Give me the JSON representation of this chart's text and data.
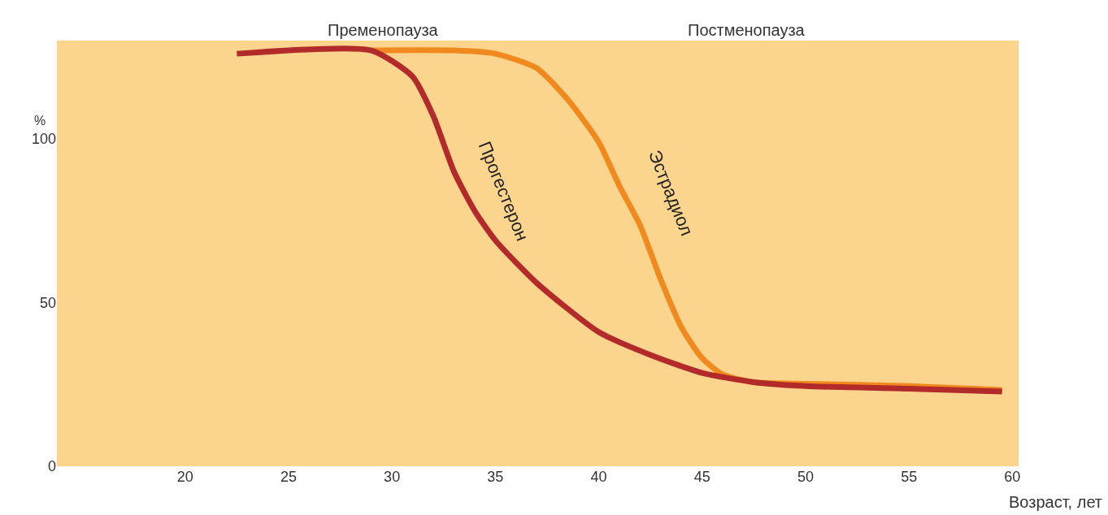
{
  "chart_data": {
    "type": "line",
    "xlabel": "Возраст, лет",
    "ylabel": "%",
    "xlim": [
      13.8,
      60.3
    ],
    "ylim": [
      0,
      130
    ],
    "xticks": [
      20,
      25,
      30,
      35,
      40,
      45,
      50,
      55,
      60
    ],
    "yticks": [
      0,
      50,
      100
    ],
    "grid": false,
    "legend": false,
    "marker": "none",
    "line_style": "solid",
    "annotations": [
      "Пременопауза",
      "Постменопауза"
    ],
    "series": [
      {
        "name": "Эстрадиол",
        "color": "#f08a1e",
        "x": [
          29,
          33,
          35,
          37,
          38.5,
          40,
          41,
          42,
          43,
          44,
          45,
          46,
          47.5,
          50,
          55,
          59.5
        ],
        "values": [
          127,
          127,
          126,
          121.6,
          112,
          99,
          85.6,
          73.6,
          57,
          42.4,
          33,
          28,
          25.7,
          25.2,
          24.5,
          23.3
        ]
      },
      {
        "name": "Прогестерон",
        "color": "#b22a2a",
        "x": [
          22.5,
          29,
          31,
          32,
          33,
          34,
          35,
          37,
          40,
          42.5,
          45,
          47.5,
          50,
          55,
          59.5
        ],
        "values": [
          126,
          127,
          119,
          107,
          90,
          78,
          69,
          56,
          41,
          34,
          28.5,
          25.7,
          24.5,
          23.7,
          22.8
        ]
      }
    ]
  }
}
